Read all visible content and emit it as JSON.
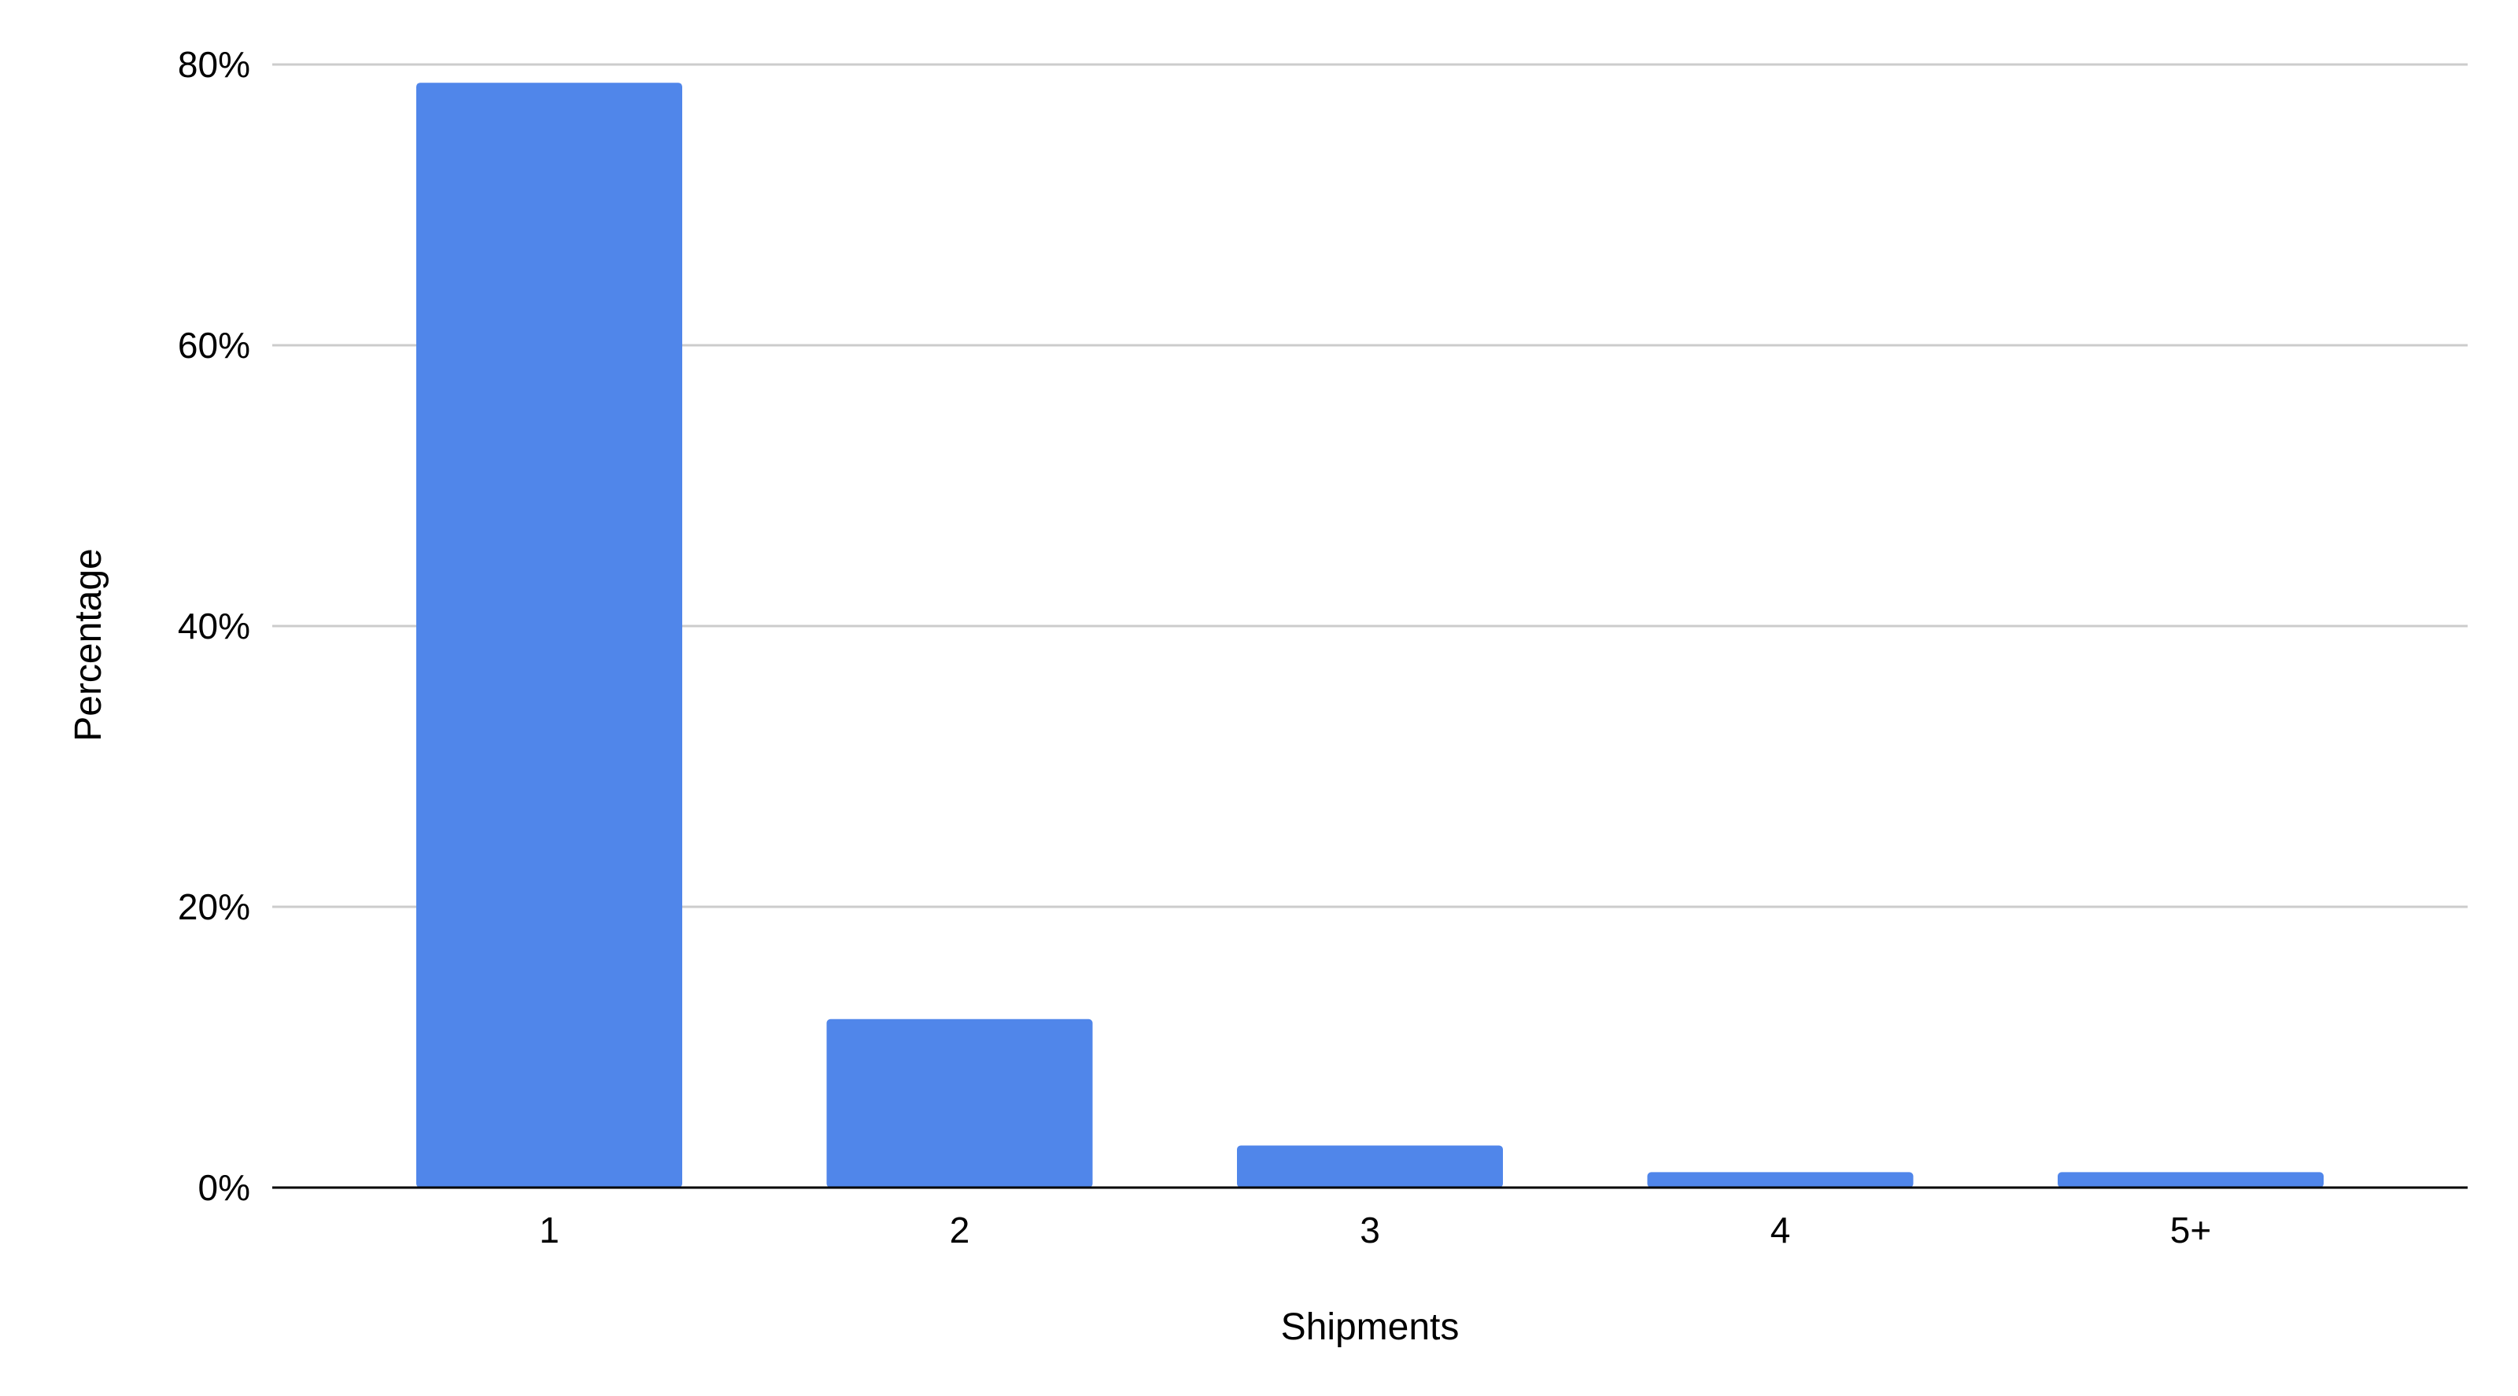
{
  "chart_data": {
    "type": "bar",
    "title": "",
    "xlabel": "Shipments",
    "ylabel": "Percentage",
    "categories": [
      "1",
      "2",
      "3",
      "4",
      "5+"
    ],
    "values": [
      78.7,
      12.0,
      3.0,
      1.1,
      1.1
    ],
    "ylim": [
      0,
      80
    ],
    "yticks": [
      0,
      20,
      40,
      60,
      80
    ],
    "ytick_labels": [
      "0%",
      "20%",
      "40%",
      "60%",
      "80%"
    ],
    "grid": true,
    "legend": "none",
    "bar_color": "#5086ea",
    "grid_color": "#cccccc",
    "axis_color": "#000000"
  }
}
